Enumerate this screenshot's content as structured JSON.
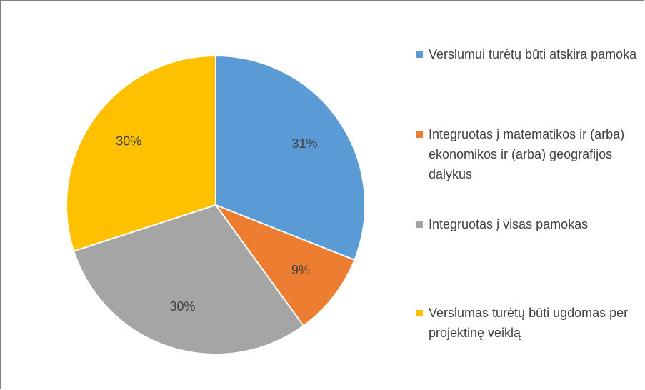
{
  "chart_data": {
    "type": "pie",
    "categories": [
      "Verslumui turėtų būti atskira pamoka",
      "Integruotas į matematikos ir (arba) ekonomikos ir (arba) geografijos dalykus",
      "Integruotas į visas pamokas",
      "Verslumas turėtų būti ugdomas per projektinę veiklą"
    ],
    "values": [
      31,
      9,
      30,
      30
    ],
    "value_labels": [
      "31%",
      "9%",
      "30%",
      "30%"
    ],
    "colors": [
      "#5b9bd5",
      "#ed7d31",
      "#a5a5a5",
      "#ffc000"
    ],
    "legend": "right"
  }
}
